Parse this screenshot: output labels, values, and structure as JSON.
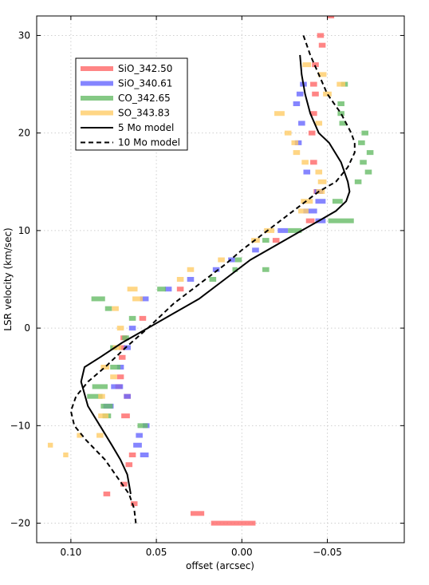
{
  "chart_data": {
    "type": "scatter",
    "title": "",
    "xlabel": "offset (arcsec)",
    "ylabel": "LSR velocity (km/sec)",
    "xlim": [
      0.12,
      -0.095
    ],
    "ylim": [
      -22,
      32
    ],
    "x_inverted": true,
    "xticks": [
      0.1,
      0.05,
      0.0,
      -0.05
    ],
    "xtick_labels": [
      "0.10",
      "0.05",
      "0.00",
      "−0.05"
    ],
    "yticks": [
      -20,
      -10,
      0,
      10,
      20,
      30
    ],
    "ytick_labels": [
      "−20",
      "−10",
      "0",
      "10",
      "20",
      "30"
    ],
    "grid": true,
    "legend_position": "upper-left",
    "series": [
      {
        "name": "SiO_342.50",
        "kind": "bars",
        "color": "#ff6666",
        "points": [
          [
            -0.052,
            32,
            0.004
          ],
          [
            -0.046,
            30,
            0.004
          ],
          [
            -0.047,
            29,
            0.004
          ],
          [
            -0.043,
            27,
            0.004
          ],
          [
            -0.042,
            25,
            0.004
          ],
          [
            -0.043,
            24,
            0.004
          ],
          [
            -0.042,
            22,
            0.004
          ],
          [
            -0.041,
            20,
            0.004
          ],
          [
            -0.042,
            17,
            0.004
          ],
          [
            -0.044,
            14,
            0.004
          ],
          [
            -0.04,
            11,
            0.005
          ],
          [
            -0.02,
            9,
            0.004
          ],
          [
            0.036,
            4,
            0.004
          ],
          [
            0.058,
            1,
            0.004
          ],
          [
            0.069,
            -1,
            0.004
          ],
          [
            0.07,
            -2,
            0.004
          ],
          [
            0.07,
            -3,
            0.004
          ],
          [
            0.071,
            -5,
            0.004
          ],
          [
            0.072,
            -6,
            0.004
          ],
          [
            0.067,
            -7,
            0.004
          ],
          [
            0.068,
            -9,
            0.005
          ],
          [
            0.064,
            -13,
            0.004
          ],
          [
            0.066,
            -14,
            0.004
          ],
          [
            0.069,
            -16,
            0.004
          ],
          [
            0.079,
            -17,
            0.004
          ],
          [
            0.063,
            -18,
            0.004
          ],
          [
            0.026,
            -19,
            0.008
          ],
          [
            0.005,
            -20,
            0.026
          ]
        ]
      },
      {
        "name": "SiO_340.61",
        "kind": "bars",
        "color": "#6666ff",
        "points": [
          [
            -0.036,
            25,
            0.004
          ],
          [
            -0.034,
            24,
            0.004
          ],
          [
            -0.032,
            23,
            0.004
          ],
          [
            -0.035,
            21,
            0.004
          ],
          [
            -0.033,
            19,
            0.004
          ],
          [
            -0.038,
            16,
            0.004
          ],
          [
            -0.045,
            14,
            0.005
          ],
          [
            -0.046,
            13,
            0.006
          ],
          [
            -0.04,
            12,
            0.008
          ],
          [
            -0.046,
            11,
            0.006
          ],
          [
            -0.024,
            10,
            0.006
          ],
          [
            -0.008,
            8,
            0.004
          ],
          [
            0.006,
            7,
            0.004
          ],
          [
            0.015,
            6,
            0.004
          ],
          [
            0.03,
            5,
            0.004
          ],
          [
            0.043,
            4,
            0.004
          ],
          [
            0.057,
            3,
            0.005
          ],
          [
            0.064,
            0,
            0.004
          ],
          [
            0.067,
            -2,
            0.004
          ],
          [
            0.071,
            -4,
            0.004
          ],
          [
            0.073,
            -6,
            0.007
          ],
          [
            0.067,
            -7,
            0.004
          ],
          [
            0.078,
            -8,
            0.006
          ],
          [
            0.056,
            -10,
            0.004
          ],
          [
            0.06,
            -11,
            0.004
          ],
          [
            0.061,
            -12,
            0.005
          ],
          [
            0.057,
            -13,
            0.005
          ]
        ]
      },
      {
        "name": "CO_342.65",
        "kind": "bars",
        "color": "#66bb66",
        "points": [
          [
            -0.06,
            25,
            0.004
          ],
          [
            -0.058,
            23,
            0.004
          ],
          [
            -0.058,
            22,
            0.004
          ],
          [
            -0.059,
            21,
            0.004
          ],
          [
            -0.072,
            20,
            0.004
          ],
          [
            -0.07,
            19,
            0.004
          ],
          [
            -0.075,
            18,
            0.004
          ],
          [
            -0.071,
            17,
            0.004
          ],
          [
            -0.074,
            16,
            0.004
          ],
          [
            -0.068,
            15,
            0.004
          ],
          [
            -0.056,
            13,
            0.006
          ],
          [
            -0.058,
            11,
            0.015
          ],
          [
            -0.031,
            10,
            0.008
          ],
          [
            -0.014,
            9,
            0.004
          ],
          [
            0.002,
            7,
            0.004
          ],
          [
            -0.014,
            6,
            0.004
          ],
          [
            0.004,
            6,
            0.003
          ],
          [
            0.017,
            5,
            0.004
          ],
          [
            0.047,
            4,
            0.005
          ],
          [
            0.084,
            3,
            0.008
          ],
          [
            0.078,
            2,
            0.004
          ],
          [
            0.064,
            1,
            0.004
          ],
          [
            0.068,
            -1,
            0.004
          ],
          [
            0.075,
            -2,
            0.004
          ],
          [
            0.074,
            -4,
            0.006
          ],
          [
            0.083,
            -6,
            0.009
          ],
          [
            0.086,
            -7,
            0.009
          ],
          [
            0.079,
            -8,
            0.007
          ],
          [
            0.079,
            -9,
            0.005
          ],
          [
            0.058,
            -10,
            0.006
          ]
        ]
      },
      {
        "name": "SO_343.83",
        "kind": "bars",
        "color": "#ffcc66",
        "points": [
          [
            -0.038,
            27,
            0.005
          ],
          [
            -0.047,
            26,
            0.005
          ],
          [
            -0.058,
            25,
            0.005
          ],
          [
            -0.05,
            24,
            0.005
          ],
          [
            -0.022,
            22,
            0.006
          ],
          [
            -0.045,
            21,
            0.004
          ],
          [
            -0.027,
            20,
            0.004
          ],
          [
            -0.031,
            19,
            0.004
          ],
          [
            -0.032,
            18,
            0.004
          ],
          [
            -0.037,
            17,
            0.004
          ],
          [
            -0.045,
            16,
            0.004
          ],
          [
            -0.047,
            15,
            0.005
          ],
          [
            -0.046,
            14,
            0.005
          ],
          [
            -0.038,
            13,
            0.007
          ],
          [
            -0.036,
            12,
            0.006
          ],
          [
            -0.016,
            10,
            0.006
          ],
          [
            -0.008,
            9,
            0.005
          ],
          [
            0.012,
            7,
            0.004
          ],
          [
            0.03,
            6,
            0.004
          ],
          [
            0.036,
            5,
            0.004
          ],
          [
            0.064,
            4,
            0.006
          ],
          [
            0.061,
            3,
            0.006
          ],
          [
            0.074,
            2,
            0.004
          ],
          [
            0.071,
            0,
            0.004
          ],
          [
            0.073,
            -2,
            0.005
          ],
          [
            0.08,
            -4,
            0.005
          ],
          [
            0.075,
            -5,
            0.004
          ],
          [
            0.082,
            -7,
            0.004
          ],
          [
            0.081,
            -9,
            0.006
          ],
          [
            0.083,
            -11,
            0.004
          ],
          [
            0.095,
            -11,
            0.003
          ],
          [
            0.112,
            -12,
            0.003
          ],
          [
            0.103,
            -13,
            0.003
          ]
        ]
      },
      {
        "name": "5 Mo model",
        "kind": "line",
        "color": "#000000",
        "dash": "solid",
        "x": [
          -0.034,
          -0.035,
          -0.037,
          -0.04,
          -0.045,
          -0.051,
          -0.058,
          -0.062,
          -0.063,
          -0.061,
          -0.055,
          -0.045,
          -0.035,
          -0.02,
          -0.005,
          0.01,
          0.025,
          0.04,
          0.055,
          0.07,
          0.083,
          0.092,
          0.094,
          0.09,
          0.083,
          0.076,
          0.071,
          0.067,
          0.066,
          0.065
        ],
        "y": [
          28,
          26,
          24,
          22,
          20,
          19,
          17,
          15,
          14,
          13,
          12,
          11,
          10,
          8.5,
          7,
          5,
          3,
          1.5,
          0,
          -1.5,
          -3,
          -4,
          -5.5,
          -8,
          -10,
          -12,
          -13.5,
          -15,
          -16,
          -17
        ]
      },
      {
        "name": "10 Mo model",
        "kind": "line",
        "color": "#000000",
        "dash": "dashed",
        "x": [
          -0.036,
          -0.04,
          -0.045,
          -0.05,
          -0.058,
          -0.064,
          -0.066,
          -0.066,
          -0.062,
          -0.055,
          -0.045,
          -0.03,
          -0.015,
          0.0,
          0.01,
          0.025,
          0.04,
          0.055,
          0.068,
          0.08,
          0.09,
          0.097,
          0.1,
          0.098,
          0.091,
          0.08,
          0.072,
          0.066,
          0.063,
          0.062
        ],
        "y": [
          30,
          28,
          26,
          24,
          22,
          20,
          19,
          18,
          16.5,
          15,
          14,
          12,
          10,
          8,
          6.5,
          4.5,
          2.5,
          0,
          -2,
          -4,
          -5.5,
          -7,
          -8.5,
          -10,
          -11.5,
          -13.5,
          -15.5,
          -17,
          -18.5,
          -20
        ]
      }
    ]
  }
}
